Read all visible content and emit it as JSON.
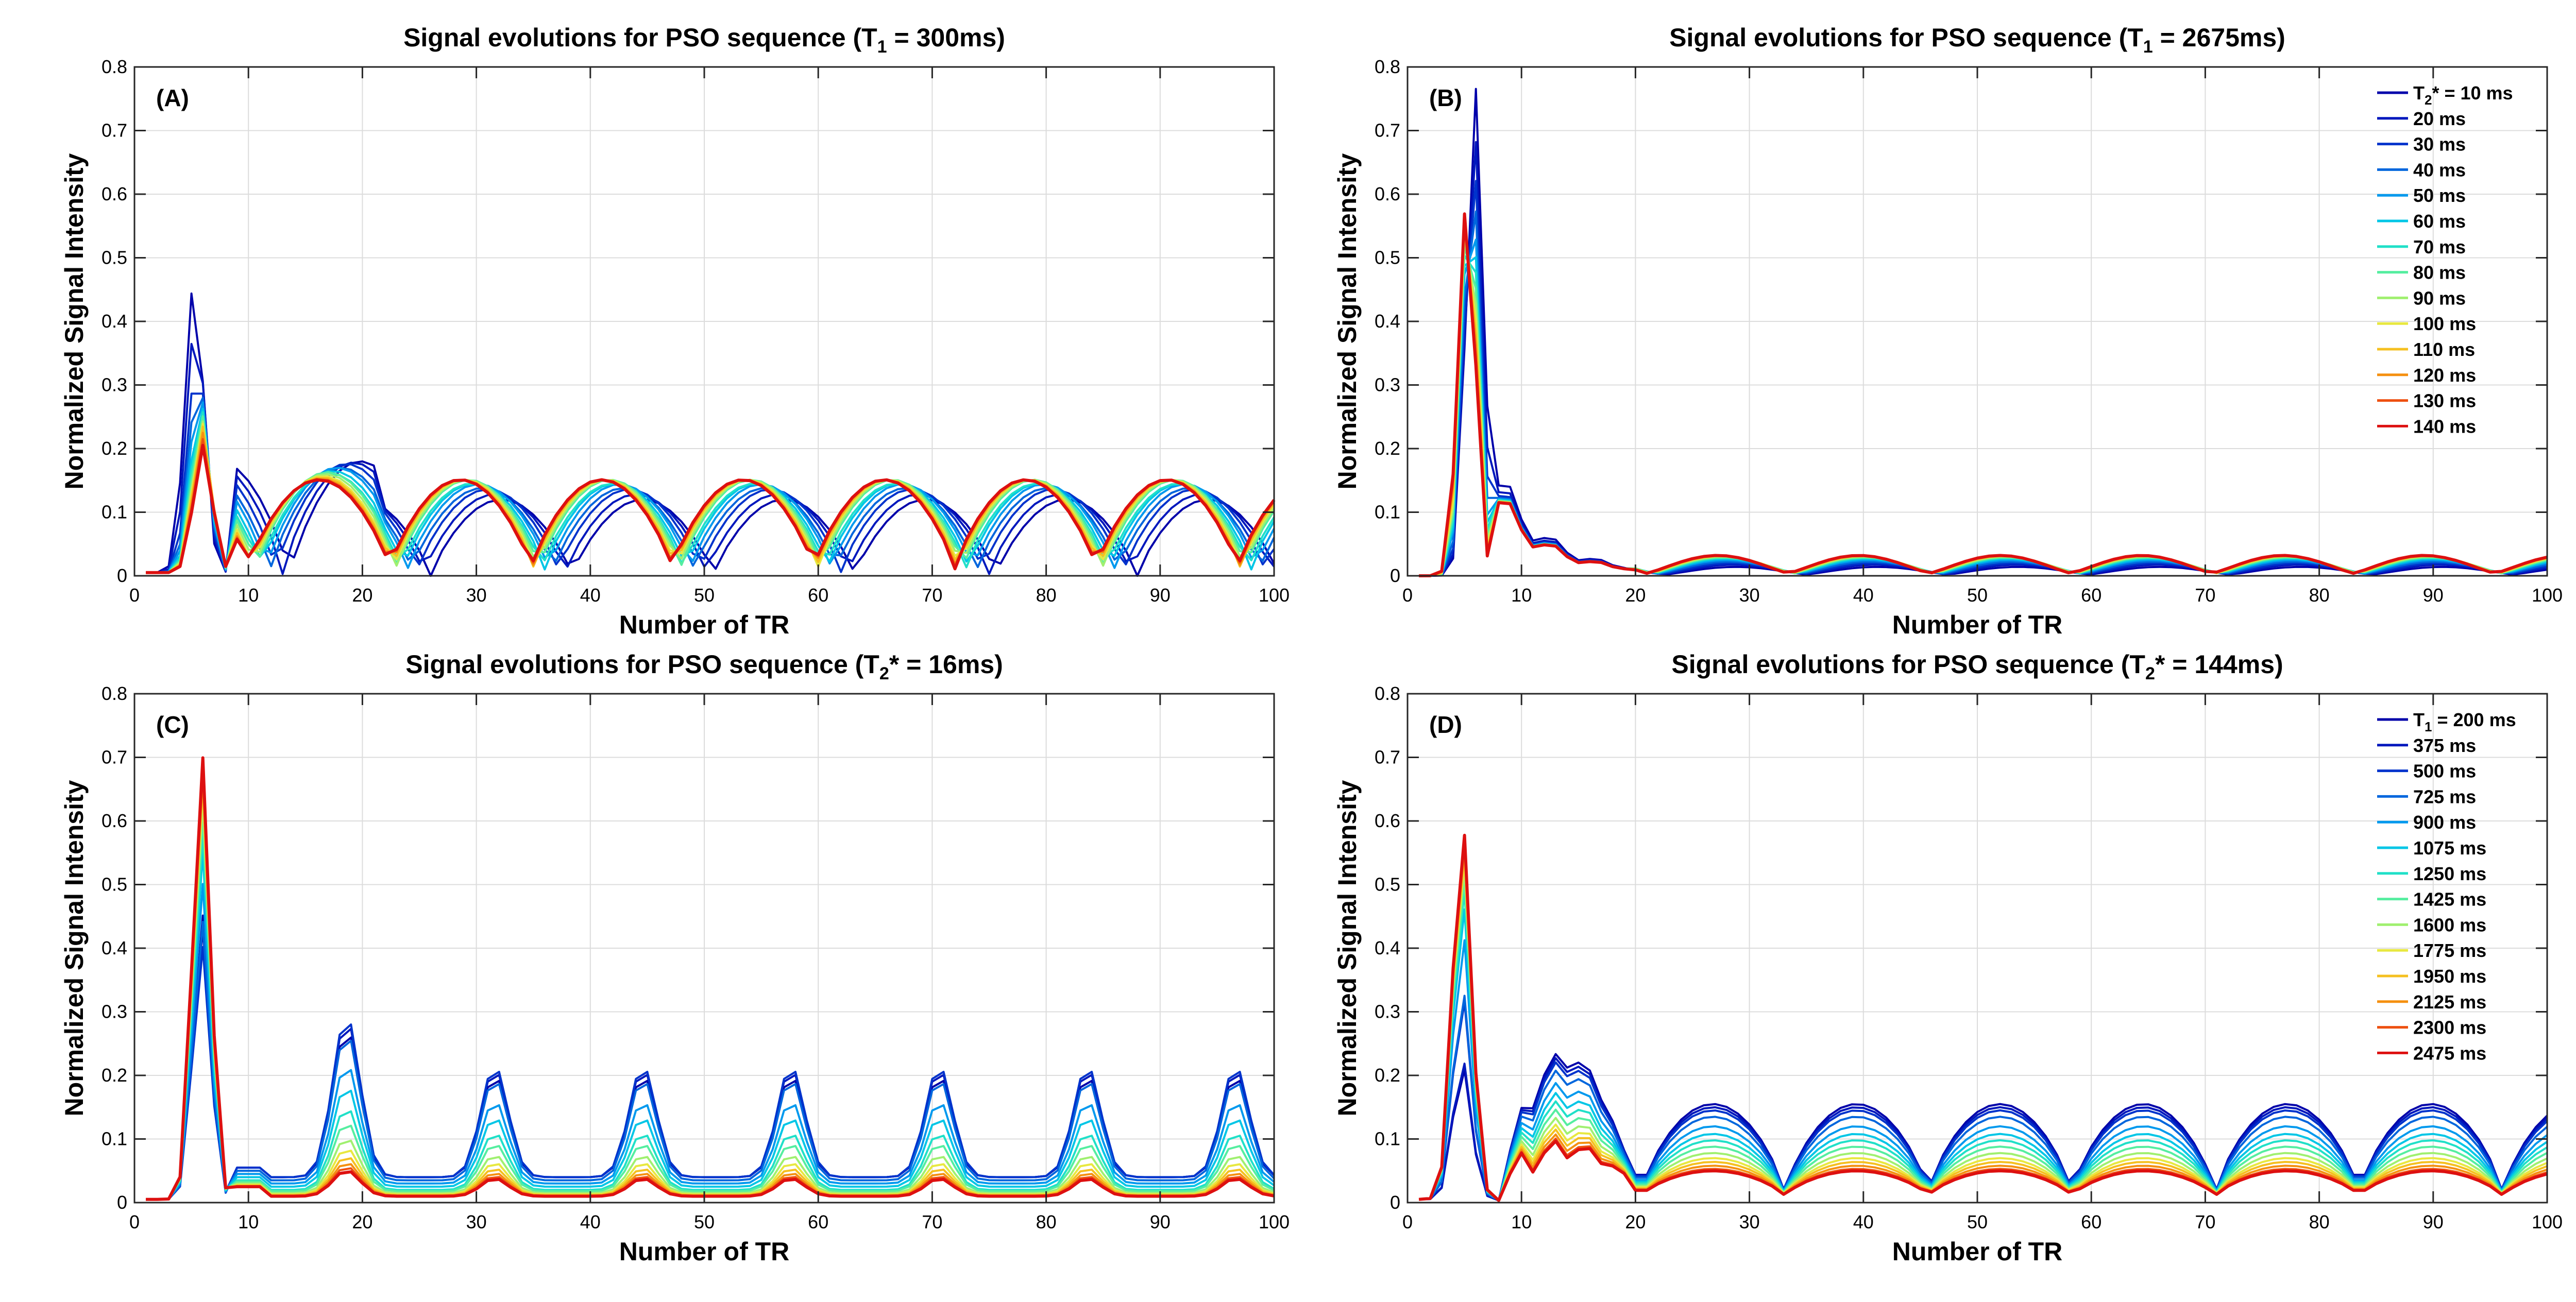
{
  "figure": {
    "type": "line-chart-grid"
  },
  "colors": {
    "axis": "#262626",
    "grid": "#dcdcdc",
    "text": "#000000"
  },
  "chart_data": [
    {
      "type": "line",
      "panel": "(A)",
      "title": {
        "pre": "Signal evolutions for PSO sequence (T",
        "sub": "1",
        "post": " = 300ms)"
      },
      "xlabel": "Number of TR",
      "ylabel": "Normalized Signal Intensity",
      "xlim": [
        0,
        100
      ],
      "ylim": [
        0,
        0.8
      ],
      "xticks": [
        "0",
        "10",
        "20",
        "30",
        "40",
        "50",
        "60",
        "70",
        "80",
        "90",
        "100"
      ],
      "yticks": [
        "0",
        "0.1",
        "0.2",
        "0.3",
        "0.4",
        "0.5",
        "0.6",
        "0.7",
        "0.8"
      ],
      "grid": true,
      "legend": null,
      "series": [
        {
          "name": "T2* = 10 ms",
          "color": "#0000aa",
          "shift": 3.0,
          "peak": 0.46,
          "amp": 0.12,
          "base": 0.0
        },
        {
          "name": "T2* = 20 ms",
          "color": "#0018bd",
          "shift": 2.5,
          "peak": 0.4,
          "amp": 0.125,
          "base": 0.015
        },
        {
          "name": "T2* = 30 ms",
          "color": "#0033cc",
          "shift": 2.0,
          "peak": 0.34,
          "amp": 0.13,
          "base": 0.03
        },
        {
          "name": "T2* = 40 ms",
          "color": "#0066dd",
          "shift": 1.6,
          "peak": 0.31,
          "amp": 0.13,
          "base": 0.04
        },
        {
          "name": "T2* = 50 ms",
          "color": "#0099ee",
          "shift": 1.3,
          "peak": 0.29,
          "amp": 0.135,
          "base": 0.045
        },
        {
          "name": "T2* = 60 ms",
          "color": "#00c6e6",
          "shift": 1.0,
          "peak": 0.27,
          "amp": 0.135,
          "base": 0.05
        },
        {
          "name": "T2* = 70 ms",
          "color": "#20e0c8",
          "shift": 0.8,
          "peak": 0.26,
          "amp": 0.135,
          "base": 0.05
        },
        {
          "name": "T2* = 80 ms",
          "color": "#55eea0",
          "shift": 0.6,
          "peak": 0.25,
          "amp": 0.14,
          "base": 0.055
        },
        {
          "name": "T2* = 90 ms",
          "color": "#a0f070",
          "shift": 0.45,
          "peak": 0.24,
          "amp": 0.14,
          "base": 0.055
        },
        {
          "name": "T2* = 100 ms",
          "color": "#e8e840",
          "shift": 0.3,
          "peak": 0.235,
          "amp": 0.14,
          "base": 0.055
        },
        {
          "name": "T2* = 110 ms",
          "color": "#f5c020",
          "shift": 0.2,
          "peak": 0.23,
          "amp": 0.14,
          "base": 0.055
        },
        {
          "name": "T2* = 120 ms",
          "color": "#f59010",
          "shift": 0.1,
          "peak": 0.22,
          "amp": 0.14,
          "base": 0.055
        },
        {
          "name": "T2* = 130 ms",
          "color": "#ee5010",
          "shift": 0.05,
          "peak": 0.21,
          "amp": 0.14,
          "base": 0.055
        },
        {
          "name": "T2* = 140 ms",
          "color": "#dd1010",
          "shift": 0.0,
          "peak": 0.2,
          "amp": 0.14,
          "base": 0.055
        }
      ]
    },
    {
      "type": "line",
      "panel": "(B)",
      "title": {
        "pre": "Signal evolutions for PSO sequence (T",
        "sub": "1",
        "post": " = 2675ms)"
      },
      "xlabel": "Number of TR",
      "ylabel": "Normalized Signal Intensity",
      "xlim": [
        0,
        100
      ],
      "ylim": [
        0,
        0.8
      ],
      "xticks": [
        "0",
        "10",
        "20",
        "30",
        "40",
        "50",
        "60",
        "70",
        "80",
        "90",
        "100"
      ],
      "yticks": [
        "0",
        "0.1",
        "0.2",
        "0.3",
        "0.4",
        "0.5",
        "0.6",
        "0.7",
        "0.8"
      ],
      "grid": true,
      "legend": {
        "position": "top-right",
        "entries": [
          {
            "label": "T2* = 10 ms",
            "pre": "T",
            "sub": "2",
            "post": "* = 10 ms",
            "color": "#0000aa"
          },
          {
            "label": "20 ms",
            "color": "#0018bd"
          },
          {
            "label": "30 ms",
            "color": "#0033cc"
          },
          {
            "label": "40 ms",
            "color": "#0066dd"
          },
          {
            "label": "50 ms",
            "color": "#0099ee"
          },
          {
            "label": "60 ms",
            "color": "#00c6e6"
          },
          {
            "label": "70 ms",
            "color": "#20e0c8"
          },
          {
            "label": "80 ms",
            "color": "#55eea0"
          },
          {
            "label": "90 ms",
            "color": "#a0f070"
          },
          {
            "label": "100 ms",
            "color": "#e8e840"
          },
          {
            "label": "110 ms",
            "color": "#f5c020"
          },
          {
            "label": "120 ms",
            "color": "#f59010"
          },
          {
            "label": "130 ms",
            "color": "#ee5010"
          },
          {
            "label": "140 ms",
            "color": "#dd1010"
          }
        ]
      },
      "series": [
        {
          "name": "T2* = 10 ms",
          "color": "#0000aa",
          "shift": 0.8,
          "peak": 0.77,
          "amp": 0.012,
          "base": 0.005
        },
        {
          "name": "T2* = 20 ms",
          "color": "#0018bd",
          "shift": 0.7,
          "peak": 0.7,
          "amp": 0.015,
          "base": 0.006
        },
        {
          "name": "T2* = 30 ms",
          "color": "#0033cc",
          "shift": 0.6,
          "peak": 0.66,
          "amp": 0.017,
          "base": 0.007
        },
        {
          "name": "T2* = 40 ms",
          "color": "#0066dd",
          "shift": 0.5,
          "peak": 0.64,
          "amp": 0.019,
          "base": 0.008
        },
        {
          "name": "T2* = 50 ms",
          "color": "#0099ee",
          "shift": 0.4,
          "peak": 0.63,
          "amp": 0.021,
          "base": 0.009
        },
        {
          "name": "T2* = 60 ms",
          "color": "#00c6e6",
          "shift": 0.35,
          "peak": 0.62,
          "amp": 0.023,
          "base": 0.009
        },
        {
          "name": "T2* = 70 ms",
          "color": "#20e0c8",
          "shift": 0.3,
          "peak": 0.615,
          "amp": 0.024,
          "base": 0.01
        },
        {
          "name": "T2* = 80 ms",
          "color": "#55eea0",
          "shift": 0.25,
          "peak": 0.61,
          "amp": 0.025,
          "base": 0.01
        },
        {
          "name": "T2* = 90 ms",
          "color": "#a0f070",
          "shift": 0.2,
          "peak": 0.605,
          "amp": 0.026,
          "base": 0.01
        },
        {
          "name": "T2* = 100 ms",
          "color": "#e8e840",
          "shift": 0.15,
          "peak": 0.6,
          "amp": 0.027,
          "base": 0.01
        },
        {
          "name": "T2* = 110 ms",
          "color": "#f5c020",
          "shift": 0.1,
          "peak": 0.6,
          "amp": 0.027,
          "base": 0.01
        },
        {
          "name": "T2* = 120 ms",
          "color": "#f59010",
          "shift": 0.07,
          "peak": 0.595,
          "amp": 0.028,
          "base": 0.01
        },
        {
          "name": "T2* = 130 ms",
          "color": "#ee5010",
          "shift": 0.03,
          "peak": 0.59,
          "amp": 0.028,
          "base": 0.01
        },
        {
          "name": "T2* = 140 ms",
          "color": "#dd1010",
          "shift": 0.0,
          "peak": 0.59,
          "amp": 0.028,
          "base": 0.01
        }
      ]
    },
    {
      "type": "line",
      "panel": "(C)",
      "title": {
        "pre": "Signal evolutions for PSO sequence (T",
        "sub": "2",
        "post": "* = 16ms)"
      },
      "xlabel": "Number of TR",
      "ylabel": "Normalized Signal Intensity",
      "xlim": [
        0,
        100
      ],
      "ylim": [
        0,
        0.8
      ],
      "xticks": [
        "0",
        "10",
        "20",
        "30",
        "40",
        "50",
        "60",
        "70",
        "80",
        "90",
        "100"
      ],
      "yticks": [
        "0",
        "0.1",
        "0.2",
        "0.3",
        "0.4",
        "0.5",
        "0.6",
        "0.7",
        "0.8"
      ],
      "grid": true,
      "legend": null,
      "series": [
        {
          "name": "T1 = 200 ms",
          "color": "#0000aa",
          "peak": 0.45,
          "amp": 0.16,
          "base": 0.04
        },
        {
          "name": "T1 = 375 ms",
          "color": "#0018bd",
          "peak": 0.43,
          "amp": 0.17,
          "base": 0.04
        },
        {
          "name": "T1 = 500 ms",
          "color": "#0033cc",
          "peak": 0.4,
          "amp": 0.175,
          "base": 0.04
        },
        {
          "name": "T1 = 725 ms",
          "color": "#0066dd",
          "peak": 0.44,
          "amp": 0.16,
          "base": 0.035
        },
        {
          "name": "T1 = 900 ms",
          "color": "#0099ee",
          "peak": 0.5,
          "amp": 0.13,
          "base": 0.03
        },
        {
          "name": "T1 = 1075 ms",
          "color": "#00c6e6",
          "peak": 0.55,
          "amp": 0.11,
          "base": 0.025
        },
        {
          "name": "T1 = 1250 ms",
          "color": "#20e0c8",
          "peak": 0.58,
          "amp": 0.09,
          "base": 0.02
        },
        {
          "name": "T1 = 1425 ms",
          "color": "#55eea0",
          "peak": 0.61,
          "amp": 0.075,
          "base": 0.018
        },
        {
          "name": "T1 = 1600 ms",
          "color": "#a0f070",
          "peak": 0.63,
          "amp": 0.06,
          "base": 0.015
        },
        {
          "name": "T1 = 1775 ms",
          "color": "#e8e840",
          "peak": 0.65,
          "amp": 0.05,
          "base": 0.013
        },
        {
          "name": "T1 = 1950 ms",
          "color": "#f5c020",
          "peak": 0.66,
          "amp": 0.042,
          "base": 0.012
        },
        {
          "name": "T1 = 2125 ms",
          "color": "#f59010",
          "peak": 0.67,
          "amp": 0.036,
          "base": 0.011
        },
        {
          "name": "T1 = 2300 ms",
          "color": "#ee5010",
          "peak": 0.68,
          "amp": 0.032,
          "base": 0.01
        },
        {
          "name": "T1 = 2475 ms",
          "color": "#dd1010",
          "peak": 0.7,
          "amp": 0.028,
          "base": 0.01
        }
      ]
    },
    {
      "type": "line",
      "panel": "(D)",
      "title": {
        "pre": "Signal evolutions for PSO sequence (T",
        "sub": "2",
        "post": "* = 144ms)"
      },
      "xlabel": "Number of TR",
      "ylabel": "Normalized Signal Intensity",
      "xlim": [
        0,
        100
      ],
      "ylim": [
        0,
        0.8
      ],
      "xticks": [
        "0",
        "10",
        "20",
        "30",
        "40",
        "50",
        "60",
        "70",
        "80",
        "90",
        "100"
      ],
      "yticks": [
        "0",
        "0.1",
        "0.2",
        "0.3",
        "0.4",
        "0.5",
        "0.6",
        "0.7",
        "0.8"
      ],
      "grid": true,
      "legend": {
        "position": "top-right",
        "entries": [
          {
            "label": "T1 = 200 ms",
            "pre": "T",
            "sub": "1",
            "post": " = 200 ms",
            "color": "#0000aa"
          },
          {
            "label": "375 ms",
            "color": "#0018bd"
          },
          {
            "label": "500 ms",
            "color": "#0033cc"
          },
          {
            "label": "725 ms",
            "color": "#0066dd"
          },
          {
            "label": "900 ms",
            "color": "#0099ee"
          },
          {
            "label": "1075 ms",
            "color": "#00c6e6"
          },
          {
            "label": "1250 ms",
            "color": "#20e0c8"
          },
          {
            "label": "1425 ms",
            "color": "#55eea0"
          },
          {
            "label": "1600 ms",
            "color": "#a0f070"
          },
          {
            "label": "1775 ms",
            "color": "#e8e840"
          },
          {
            "label": "1950 ms",
            "color": "#f5c020"
          },
          {
            "label": "2125 ms",
            "color": "#f59010"
          },
          {
            "label": "2300 ms",
            "color": "#ee5010"
          },
          {
            "label": "2475 ms",
            "color": "#dd1010"
          }
        ]
      },
      "series": [
        {
          "name": "T1 = 200 ms",
          "color": "#0000aa",
          "peak": 0.21,
          "amp": 0.145,
          "base": 0.01
        },
        {
          "name": "T1 = 375 ms",
          "color": "#0018bd",
          "peak": 0.22,
          "amp": 0.14,
          "base": 0.01
        },
        {
          "name": "T1 = 500 ms",
          "color": "#0033cc",
          "peak": 0.32,
          "amp": 0.135,
          "base": 0.01
        },
        {
          "name": "T1 = 725 ms",
          "color": "#0066dd",
          "peak": 0.33,
          "amp": 0.125,
          "base": 0.01
        },
        {
          "name": "T1 = 900 ms",
          "color": "#0099ee",
          "peak": 0.42,
          "amp": 0.11,
          "base": 0.01
        },
        {
          "name": "T1 = 1075 ms",
          "color": "#00c6e6",
          "peak": 0.47,
          "amp": 0.098,
          "base": 0.01
        },
        {
          "name": "T1 = 1250 ms",
          "color": "#20e0c8",
          "peak": 0.5,
          "amp": 0.088,
          "base": 0.01
        },
        {
          "name": "T1 = 1425 ms",
          "color": "#55eea0",
          "peak": 0.52,
          "amp": 0.078,
          "base": 0.01
        },
        {
          "name": "T1 = 1600 ms",
          "color": "#a0f070",
          "peak": 0.54,
          "amp": 0.068,
          "base": 0.01
        },
        {
          "name": "T1 = 1775 ms",
          "color": "#e8e840",
          "peak": 0.55,
          "amp": 0.06,
          "base": 0.01
        },
        {
          "name": "T1 = 1950 ms",
          "color": "#f5c020",
          "peak": 0.56,
          "amp": 0.054,
          "base": 0.01
        },
        {
          "name": "T1 = 2125 ms",
          "color": "#f59010",
          "peak": 0.57,
          "amp": 0.048,
          "base": 0.01
        },
        {
          "name": "T1 = 2300 ms",
          "color": "#ee5010",
          "peak": 0.58,
          "amp": 0.043,
          "base": 0.01
        },
        {
          "name": "T1 = 2475 ms",
          "color": "#dd1010",
          "peak": 0.59,
          "amp": 0.04,
          "base": 0.01
        }
      ]
    }
  ]
}
